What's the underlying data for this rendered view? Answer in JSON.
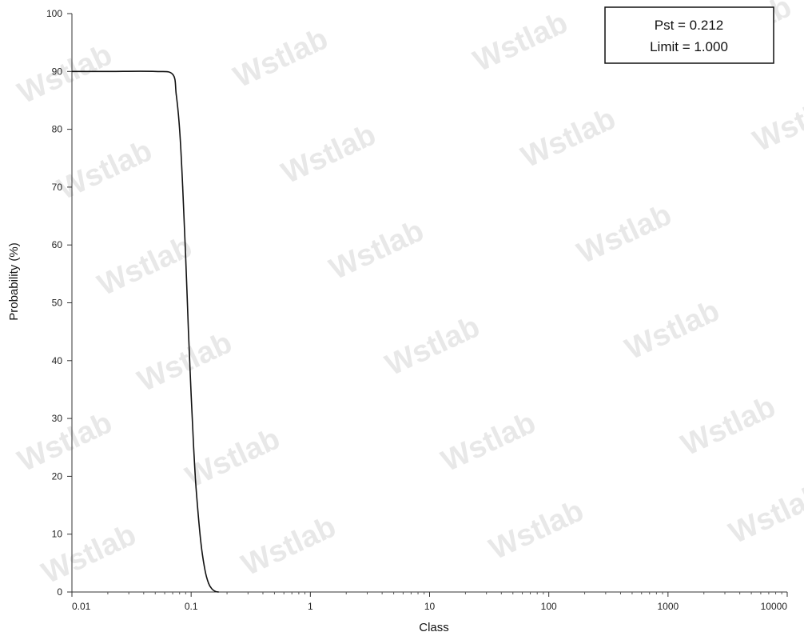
{
  "chart_data": {
    "type": "line",
    "xlabel": "Class",
    "ylabel": "Probability (%)",
    "x_scale": "log",
    "xlim": [
      0.01,
      10000
    ],
    "ylim": [
      0,
      100
    ],
    "x_ticks": [
      "0.01",
      "0.1",
      "1",
      "10",
      "100",
      "1000",
      "10000"
    ],
    "y_ticks": [
      "0",
      "10",
      "20",
      "30",
      "40",
      "50",
      "60",
      "70",
      "80",
      "90",
      "100"
    ],
    "grid": false,
    "legend_placement": "top-right",
    "annotation": {
      "line1": "Pst = 0.212",
      "line2": "Limit = 1.000"
    },
    "watermark": "Wstlab",
    "series": [
      {
        "x": [
          0.01,
          0.02,
          0.05,
          0.07,
          0.075,
          0.08,
          0.085,
          0.09,
          0.095,
          0.1,
          0.105,
          0.11,
          0.12,
          0.13,
          0.14,
          0.15,
          0.16,
          0.17
        ],
        "values": [
          90,
          90,
          90,
          89.5,
          86,
          80,
          70,
          58,
          45,
          34,
          25,
          18,
          9,
          4,
          1.5,
          0.5,
          0.1,
          0
        ]
      }
    ]
  }
}
